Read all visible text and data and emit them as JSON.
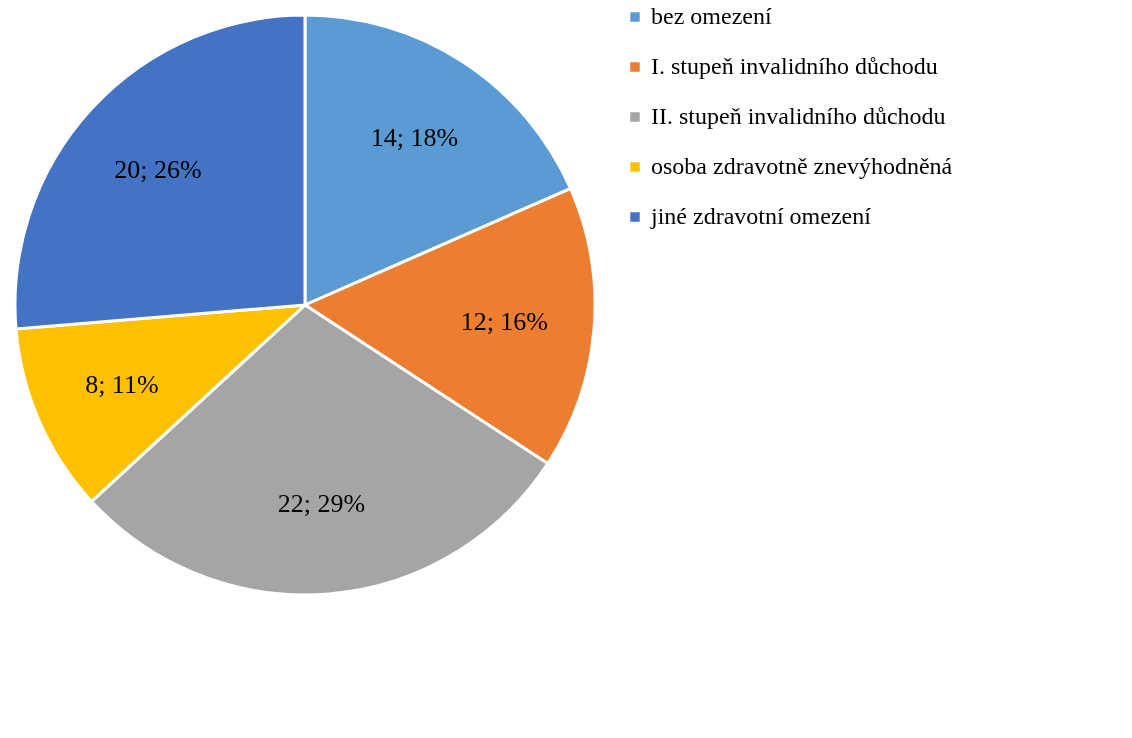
{
  "chart_data": {
    "type": "pie",
    "categories": [
      "bez omezení",
      "I. stupeň invalidního důchodu",
      "II. stupeň invalidního důchodu",
      "osoba zdravotně znevýhodněná",
      "jiné zdravotní omezení"
    ],
    "values": [
      14,
      12,
      22,
      8,
      20
    ],
    "colors": [
      "#5b9bd5",
      "#ed7d31",
      "#a5a5a5",
      "#ffc000",
      "#4472c4"
    ],
    "value_labels": [
      "14; 18%",
      "12; 16%",
      "22; 29%",
      "8; 11%",
      "20; 26%"
    ],
    "legend": "right"
  }
}
